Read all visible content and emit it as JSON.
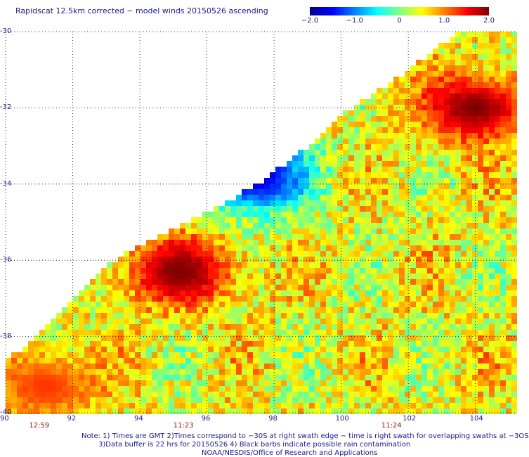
{
  "title": "Rapidscat 12.5km corrected − model winds 20150526 ascending",
  "colorbar": {
    "ticks": [
      {
        "value": -2.0,
        "label": "−2.0"
      },
      {
        "value": -1.0,
        "label": "−1.0"
      },
      {
        "value": 0,
        "label": "0"
      },
      {
        "value": 1.0,
        "label": "1.0"
      },
      {
        "value": 2.0,
        "label": "2.0"
      }
    ],
    "colors": [
      "#00008f",
      "#0000ff",
      "#0080ff",
      "#00ffff",
      "#80ff80",
      "#ffff00",
      "#ff8000",
      "#ff0000",
      "#800000"
    ]
  },
  "axes": {
    "x_labels": [
      "90",
      "92",
      "94",
      "96",
      "98",
      "100",
      "102",
      "104"
    ],
    "y_labels": [
      "-30",
      "-32",
      "-34",
      "-36",
      "-38",
      "-40"
    ],
    "time_labels": [
      {
        "lon": 91.0,
        "text": "12:59"
      },
      {
        "lon": 95.3,
        "text": "11:23"
      },
      {
        "lon": 101.5,
        "text": "11:24"
      }
    ]
  },
  "chart_data": {
    "type": "heatmap",
    "title": "Rapidscat 12.5km corrected − model winds 20150526 ascending",
    "xlabel": "",
    "ylabel": "",
    "xlim": [
      90,
      105.2
    ],
    "ylim": [
      -40,
      -30
    ],
    "x_ticks": [
      90,
      92,
      94,
      96,
      98,
      100,
      102,
      104
    ],
    "y_ticks": [
      -30,
      -32,
      -34,
      -36,
      -38,
      -40
    ],
    "color_range": [
      -2.0,
      2.0
    ],
    "grid": true,
    "swath_left_edge": [
      [
        90.0,
        -40.0
      ],
      [
        90.0,
        -38.7
      ],
      [
        92.0,
        -37.0
      ],
      [
        93.5,
        -35.8
      ],
      [
        95.5,
        -35.0
      ],
      [
        97.5,
        -34.0
      ],
      [
        99.0,
        -33.0
      ],
      [
        100.0,
        -32.2
      ],
      [
        102.0,
        -31.0
      ],
      [
        103.5,
        -30.0
      ]
    ],
    "features": [
      {
        "name": "large positive anomaly",
        "lon": 95.2,
        "lat": -36.3,
        "value": 2.0
      },
      {
        "name": "negative anomaly",
        "lon": 97.4,
        "lat": -33.8,
        "value": -1.8
      },
      {
        "name": "positive anomaly",
        "lon": 104.0,
        "lat": -32.0,
        "value": 2.0
      },
      {
        "name": "positive anomaly",
        "lon": 91.2,
        "lat": -39.3,
        "value": 1.3
      }
    ]
  },
  "notes": {
    "line1": "Note: 1) Times are GMT 2)Times correspond to −30S at right swath edge − time is right swath for overlapping swaths at −3OS",
    "line2": "3)Data buffer is 22 hrs for 20150526 4) Black barbs indicate possible rain contamination",
    "line3": "NOAA/NESDIS/Office of Research and Applications"
  }
}
